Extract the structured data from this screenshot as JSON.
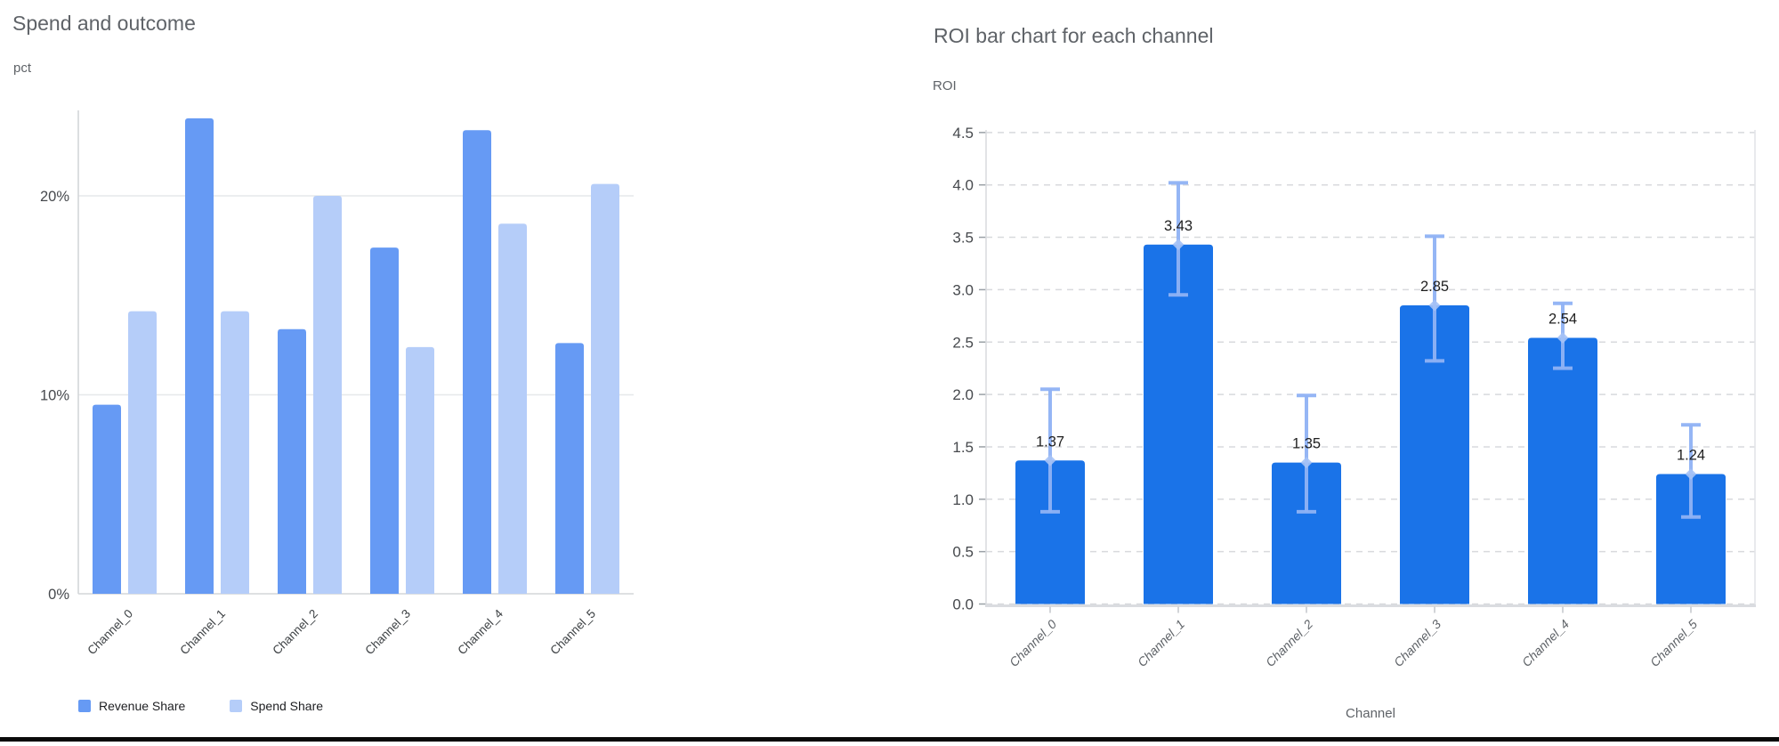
{
  "page": {
    "background_color": "#ffffff",
    "bottom_border_color": "#0a0a0a"
  },
  "left_chart": {
    "title": "Spend and outcome",
    "unit_label": "pct",
    "legend": [
      {
        "label": "Revenue Share",
        "color": "#669af4"
      },
      {
        "label": "Spend Share",
        "color": "#b5cdf9"
      }
    ]
  },
  "right_chart": {
    "title": "ROI bar chart for each channel",
    "y_axis_label": "ROI",
    "x_axis_label": "Channel"
  },
  "chart_data": [
    {
      "type": "bar",
      "title": "Spend and outcome",
      "ylabel": "pct",
      "categories": [
        "Channel_0",
        "Channel_1",
        "Channel_2",
        "Channel_3",
        "Channel_4",
        "Channel_5"
      ],
      "series": [
        {
          "name": "Revenue Share",
          "color": "#669af4",
          "values": [
            9.5,
            23.9,
            13.3,
            17.4,
            23.3,
            12.6
          ]
        },
        {
          "name": "Spend Share",
          "color": "#b5cdf9",
          "values": [
            14.2,
            14.2,
            20.0,
            12.4,
            18.6,
            20.6
          ]
        }
      ],
      "yticks": [
        {
          "value": 0,
          "label": "0%"
        },
        {
          "value": 10,
          "label": "10%"
        },
        {
          "value": 20,
          "label": "20%"
        }
      ],
      "ylim": [
        0,
        25
      ],
      "grid": "solid-horizontal",
      "legend_position": "bottom",
      "x_label_rotation_deg": -45
    },
    {
      "type": "bar",
      "title": "ROI bar chart for each channel",
      "xlabel": "Channel",
      "ylabel": "ROI",
      "categories": [
        "Channel_0",
        "Channel_1",
        "Channel_2",
        "Channel_3",
        "Channel_4",
        "Channel_5"
      ],
      "values": [
        1.37,
        3.43,
        1.35,
        2.85,
        2.54,
        1.24
      ],
      "data_labels": [
        "1.37",
        "3.43",
        "1.35",
        "2.85",
        "2.54",
        "1.24"
      ],
      "error_low": [
        0.88,
        2.95,
        0.88,
        2.32,
        2.25,
        0.83
      ],
      "error_high": [
        2.05,
        4.02,
        1.99,
        3.51,
        2.87,
        1.71
      ],
      "yticks": [
        {
          "value": 0.0,
          "label": "0.0"
        },
        {
          "value": 0.5,
          "label": "0.5"
        },
        {
          "value": 1.0,
          "label": "1.0"
        },
        {
          "value": 1.5,
          "label": "1.5"
        },
        {
          "value": 2.0,
          "label": "2.0"
        },
        {
          "value": 2.5,
          "label": "2.5"
        },
        {
          "value": 3.0,
          "label": "3.0"
        },
        {
          "value": 3.5,
          "label": "3.5"
        },
        {
          "value": 4.0,
          "label": "4.0"
        },
        {
          "value": 4.5,
          "label": "4.5"
        }
      ],
      "ylim": [
        0,
        4.5
      ],
      "bar_color": "#1a73e8",
      "error_bar_color": "#8fb2f4",
      "grid": "dashed-horizontal",
      "x_label_style": "italic",
      "x_label_rotation_deg": -45
    }
  ]
}
